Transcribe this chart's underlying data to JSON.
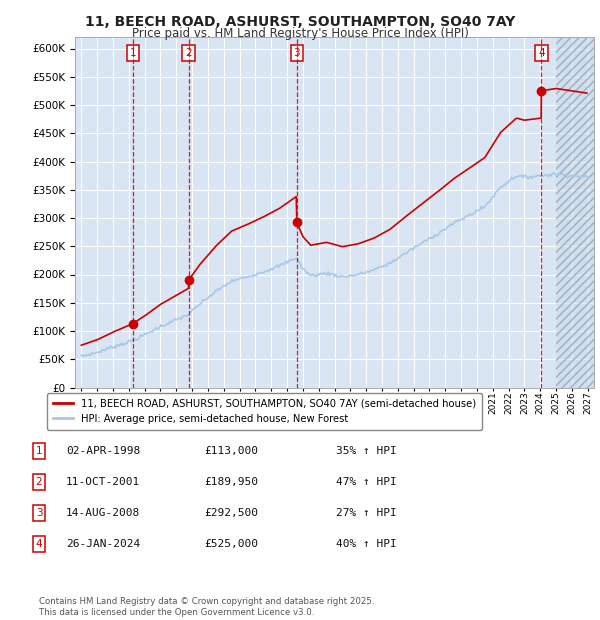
{
  "title": "11, BEECH ROAD, ASHURST, SOUTHAMPTON, SO40 7AY",
  "subtitle": "Price paid vs. HM Land Registry's House Price Index (HPI)",
  "ylim": [
    0,
    620000
  ],
  "yticks": [
    0,
    50000,
    100000,
    150000,
    200000,
    250000,
    300000,
    350000,
    400000,
    450000,
    500000,
    550000,
    600000
  ],
  "xlim_start": 1994.6,
  "xlim_end": 2027.4,
  "plot_bg_color": "#d9e5f3",
  "grid_color": "#ffffff",
  "sale_dates": [
    1998.25,
    2001.78,
    2008.62,
    2024.07
  ],
  "sale_prices": [
    113000,
    189950,
    292500,
    525000
  ],
  "sale_labels": [
    "1",
    "2",
    "3",
    "4"
  ],
  "hpi_line_color": "#a8c8e8",
  "price_line_color": "#cc0000",
  "legend_line1": "11, BEECH ROAD, ASHURST, SOUTHAMPTON, SO40 7AY (semi-detached house)",
  "legend_line2": "HPI: Average price, semi-detached house, New Forest",
  "table_rows": [
    [
      "1",
      "02-APR-1998",
      "£113,000",
      "35% ↑ HPI"
    ],
    [
      "2",
      "11-OCT-2001",
      "£189,950",
      "47% ↑ HPI"
    ],
    [
      "3",
      "14-AUG-2008",
      "£292,500",
      "27% ↑ HPI"
    ],
    [
      "4",
      "26-JAN-2024",
      "£525,000",
      "40% ↑ HPI"
    ]
  ],
  "footer": "Contains HM Land Registry data © Crown copyright and database right 2025.\nThis data is licensed under the Open Government Licence v3.0."
}
